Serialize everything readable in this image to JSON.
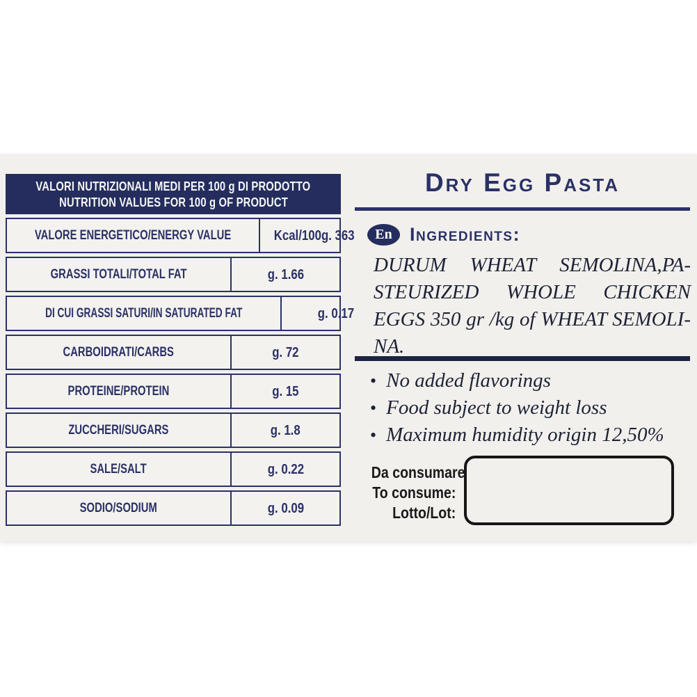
{
  "colors": {
    "navy": "#2a3166",
    "band": "#242d5e",
    "paper": "#f2f0ec",
    "ink": "#1d2236",
    "black": "#1a1a1a"
  },
  "nutrition_table": {
    "header_line1": "VALORI NUTRIZIONALI MEDI PER 100 g DI PRODOTTO",
    "header_line2": "NUTRITION VALUES FOR 100 g OF PRODUCT",
    "rows": [
      {
        "label": "VALORE ENERGETICO/ENERGY VALUE",
        "value": "Kcal/100g. 363"
      },
      {
        "label": "GRASSI TOTALI/TOTAL FAT",
        "value": "g. 1.66"
      },
      {
        "label": "DI CUI GRASSI SATURI/IN SATURATED FAT",
        "value": "g. 0.17"
      },
      {
        "label": "CARBOIDRATI/CARBS",
        "value": "g. 72"
      },
      {
        "label": "PROTEINE/PROTEIN",
        "value": "g. 15"
      },
      {
        "label": "ZUCCHERI/SUGARS",
        "value": "g. 1.8"
      },
      {
        "label": "SALE/SALT",
        "value": "g. 0.22"
      },
      {
        "label": "SODIO/SODIUM",
        "value": "g. 0.09"
      }
    ]
  },
  "product": {
    "title": "Dry Egg Pasta",
    "language_badge": "En",
    "ingredients_heading": "Ingredients:",
    "ingredients_lines": [
      "DURUM WHEAT SEMOLINA,PA-",
      "STEURIZED WHOLE CHICKEN",
      "EGGS 350 gr /kg of WHEAT SEMOLI-",
      "NA."
    ],
    "bullet_glyph": "•",
    "bullets": [
      "No added flavorings",
      "Food subject to weight loss",
      "Maximum humidity origin 12,50%"
    ],
    "consume_labels": [
      "Da consumare",
      "To consume:",
      "Lotto/Lot:"
    ],
    "lot_box_value": ""
  }
}
